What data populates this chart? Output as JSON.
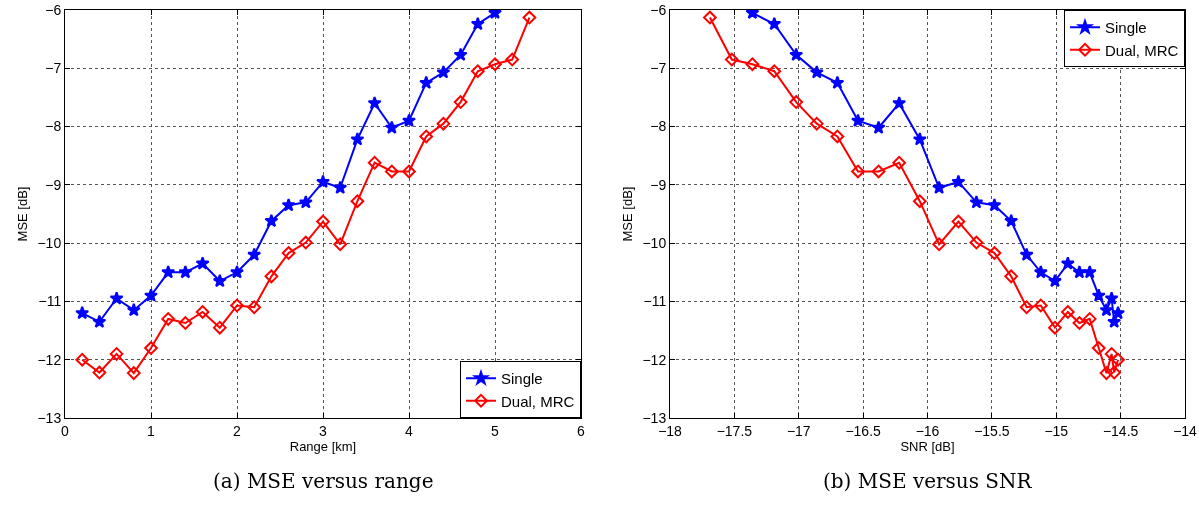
{
  "chart_data": [
    {
      "type": "line",
      "xlabel": "Range [km]",
      "ylabel": "MSE [dB]",
      "annotations": [
        "(a) MSE versus range"
      ],
      "xlim": [
        0,
        6
      ],
      "xticks": [
        0,
        1,
        2,
        3,
        4,
        5,
        6
      ],
      "ylim": [
        -13,
        -6
      ],
      "yticks": [
        {
          "value": -13,
          "label": "−13"
        },
        {
          "value": -12,
          "label": "−12"
        },
        {
          "value": -11,
          "label": "−11"
        },
        {
          "value": -10,
          "label": "−10"
        },
        {
          "value": -9,
          "label": "−9"
        },
        {
          "value": -8,
          "label": "−8"
        },
        {
          "value": -7,
          "label": "−7"
        },
        {
          "value": -6,
          "label": "−6"
        }
      ],
      "grid": true,
      "legend": "bottom right",
      "line_style": "solid",
      "series": [
        {
          "name": "Single",
          "color": "#0000ff",
          "marker": "star",
          "x": [
            0.2,
            0.4,
            0.6,
            0.8,
            1.0,
            1.2,
            1.4,
            1.6,
            1.8,
            2.0,
            2.2,
            2.4,
            2.6,
            2.8,
            3.0,
            3.2,
            3.4,
            3.6,
            3.8,
            4.0,
            4.2,
            4.4,
            4.6,
            4.8,
            5.0
          ],
          "values": [
            -11.2,
            -11.35,
            -10.95,
            -11.15,
            -10.9,
            -10.5,
            -10.5,
            -10.35,
            -10.65,
            -10.5,
            -10.2,
            -9.62,
            -9.35,
            -9.3,
            -8.95,
            -9.05,
            -8.22,
            -7.6,
            -8.02,
            -7.9,
            -7.25,
            -7.07,
            -6.77,
            -6.24,
            -6.05
          ]
        },
        {
          "name": "Dual, MRC",
          "color": "#ff0000",
          "marker": "diamond",
          "x": [
            0.2,
            0.4,
            0.6,
            0.8,
            1.0,
            1.2,
            1.4,
            1.6,
            1.8,
            2.0,
            2.2,
            2.4,
            2.6,
            2.8,
            3.0,
            3.2,
            3.4,
            3.6,
            3.8,
            4.0,
            4.2,
            4.4,
            4.6,
            4.8,
            5.0,
            5.2,
            5.4
          ],
          "values": [
            -12.0,
            -12.22,
            -11.9,
            -12.23,
            -11.8,
            -11.3,
            -11.37,
            -11.18,
            -11.45,
            -11.07,
            -11.1,
            -10.57,
            -10.17,
            -9.99,
            -9.63,
            -10.02,
            -9.28,
            -8.62,
            -8.77,
            -8.77,
            -8.17,
            -7.95,
            -7.58,
            -7.05,
            -6.93,
            -6.85,
            -6.13
          ]
        }
      ]
    },
    {
      "type": "line",
      "xlabel": "SNR [dB]",
      "ylabel": "MSE [dB]",
      "annotations": [
        "(b) MSE versus SNR"
      ],
      "xlim": [
        -18,
        -14
      ],
      "xticks": [
        {
          "value": -18,
          "label": "−18"
        },
        {
          "value": -17.5,
          "label": "−17.5"
        },
        {
          "value": -17,
          "label": "−17"
        },
        {
          "value": -16.5,
          "label": "−16.5"
        },
        {
          "value": -16,
          "label": "−16"
        },
        {
          "value": -15.5,
          "label": "−15.5"
        },
        {
          "value": -15,
          "label": "−15"
        },
        {
          "value": -14.5,
          "label": "−14.5"
        },
        {
          "value": -14,
          "label": "−14"
        }
      ],
      "ylim": [
        -13,
        -6
      ],
      "yticks": [
        {
          "value": -13,
          "label": "−13"
        },
        {
          "value": -12,
          "label": "−12"
        },
        {
          "value": -11,
          "label": "−11"
        },
        {
          "value": -10,
          "label": "−10"
        },
        {
          "value": -9,
          "label": "−9"
        },
        {
          "value": -8,
          "label": "−8"
        },
        {
          "value": -7,
          "label": "−7"
        },
        {
          "value": -6,
          "label": "−6"
        }
      ],
      "grid": true,
      "legend": "top right",
      "line_style": "solid",
      "series": [
        {
          "name": "Single",
          "color": "#0000ff",
          "marker": "star",
          "x": [
            -17.36,
            -17.19,
            -17.02,
            -16.86,
            -16.7,
            -16.54,
            -16.38,
            -16.22,
            -16.06,
            -15.91,
            -15.76,
            -15.62,
            -15.48,
            -15.35,
            -15.23,
            -15.12,
            -15.01,
            -14.91,
            -14.82,
            -14.74,
            -14.67,
            -14.61,
            -14.57,
            -14.55,
            -14.52
          ],
          "values": [
            -6.05,
            -6.24,
            -6.77,
            -7.07,
            -7.25,
            -7.9,
            -8.02,
            -7.6,
            -8.22,
            -9.05,
            -8.95,
            -9.3,
            -9.35,
            -9.62,
            -10.2,
            -10.5,
            -10.65,
            -10.35,
            -10.5,
            -10.5,
            -10.9,
            -11.15,
            -10.95,
            -11.35,
            -11.2
          ]
        },
        {
          "name": "Dual, MRC",
          "color": "#ff0000",
          "marker": "diamond",
          "x": [
            -17.69,
            -17.52,
            -17.36,
            -17.19,
            -17.02,
            -16.86,
            -16.7,
            -16.54,
            -16.38,
            -16.22,
            -16.06,
            -15.91,
            -15.76,
            -15.62,
            -15.48,
            -15.35,
            -15.23,
            -15.12,
            -15.01,
            -14.91,
            -14.82,
            -14.74,
            -14.67,
            -14.61,
            -14.57,
            -14.55,
            -14.52
          ],
          "values": [
            -6.13,
            -6.85,
            -6.93,
            -7.05,
            -7.58,
            -7.95,
            -8.17,
            -8.77,
            -8.77,
            -8.62,
            -9.28,
            -10.02,
            -9.63,
            -9.99,
            -10.17,
            -10.57,
            -11.1,
            -11.07,
            -11.45,
            -11.18,
            -11.37,
            -11.3,
            -11.8,
            -12.23,
            -11.9,
            -12.22,
            -12.0
          ]
        }
      ]
    }
  ]
}
